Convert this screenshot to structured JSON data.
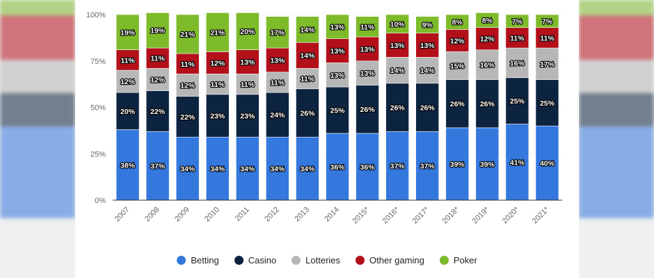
{
  "chart_data": {
    "type": "bar",
    "stacked": true,
    "categories": [
      "2007",
      "2008",
      "2009",
      "2010",
      "2011",
      "2012",
      "2013",
      "2014",
      "2015*",
      "2016*",
      "2017*",
      "2018*",
      "2019*",
      "2020*",
      "2021*"
    ],
    "series": [
      {
        "name": "Betting",
        "color": "#3478de",
        "values": [
          38,
          37,
          34,
          34,
          34,
          34,
          34,
          36,
          36,
          37,
          37,
          39,
          39,
          41,
          40
        ]
      },
      {
        "name": "Casino",
        "color": "#0d2440",
        "values": [
          20,
          22,
          22,
          23,
          23,
          24,
          26,
          25,
          26,
          26,
          26,
          26,
          26,
          25,
          25
        ]
      },
      {
        "name": "Lotteries",
        "color": "#b7b7b7",
        "values": [
          12,
          12,
          12,
          11,
          11,
          11,
          11,
          13,
          13,
          14,
          14,
          15,
          16,
          16,
          17
        ]
      },
      {
        "name": "Other gaming",
        "color": "#b3101a",
        "values": [
          11,
          11,
          11,
          12,
          13,
          13,
          14,
          13,
          13,
          13,
          13,
          12,
          12,
          11,
          11
        ]
      },
      {
        "name": "Poker",
        "color": "#7dbb2a",
        "values": [
          19,
          19,
          21,
          21,
          20,
          17,
          14,
          13,
          11,
          10,
          9,
          8,
          8,
          7,
          7
        ]
      }
    ],
    "y_ticks": [
      "0%",
      "25%",
      "50%",
      "75%",
      "100%"
    ],
    "ylim": [
      0,
      100
    ],
    "value_suffix": "%",
    "grid": true,
    "legend_position": "bottom"
  }
}
